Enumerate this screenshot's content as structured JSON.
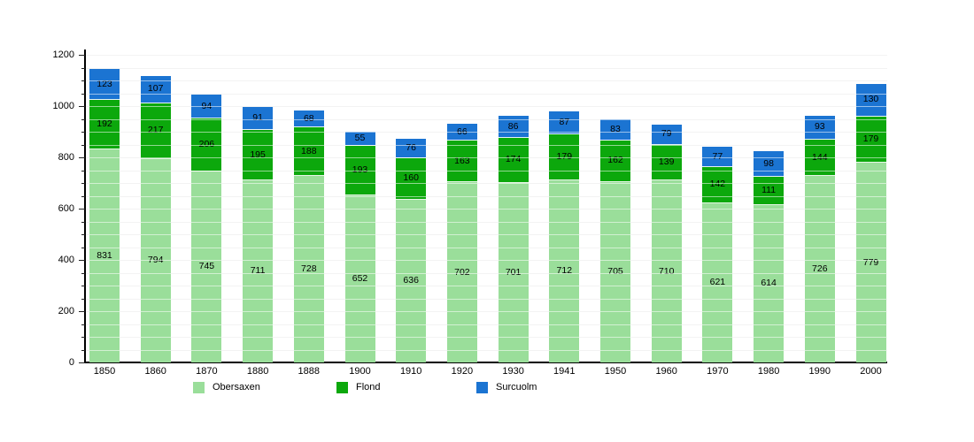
{
  "chart_data": {
    "type": "bar",
    "stacked": true,
    "title": "",
    "categories": [
      "1850",
      "1860",
      "1870",
      "1880",
      "1888",
      "1900",
      "1910",
      "1920",
      "1930",
      "1941",
      "1950",
      "1960",
      "1970",
      "1980",
      "1990",
      "2000"
    ],
    "series": [
      {
        "name": "Obersaxen",
        "color": "#9ADE9A",
        "values": [
          831,
          794,
          745,
          711,
          728,
          652,
          636,
          702,
          701,
          712,
          705,
          710,
          621,
          614,
          726,
          779
        ]
      },
      {
        "name": "Flond",
        "color": "#0CA80C",
        "values": [
          192,
          217,
          206,
          195,
          188,
          193,
          160,
          163,
          174,
          179,
          162,
          139,
          142,
          111,
          144,
          179
        ]
      },
      {
        "name": "Surcuolm",
        "color": "#1B74D2",
        "values": [
          123,
          107,
          94,
          91,
          68,
          55,
          76,
          66,
          86,
          87,
          83,
          79,
          77,
          98,
          93,
          130
        ]
      }
    ],
    "ylim": [
      0,
      1200
    ],
    "y_major_ticks": [
      "0",
      "200",
      "400",
      "600",
      "800",
      "1000",
      "1200"
    ],
    "y_gridline_interval": 50,
    "grid": "horizontal",
    "legend_position": "bottom",
    "bar_value_labels": true,
    "axis_color": "#000000",
    "gridline_color": "#e4e4e4"
  }
}
